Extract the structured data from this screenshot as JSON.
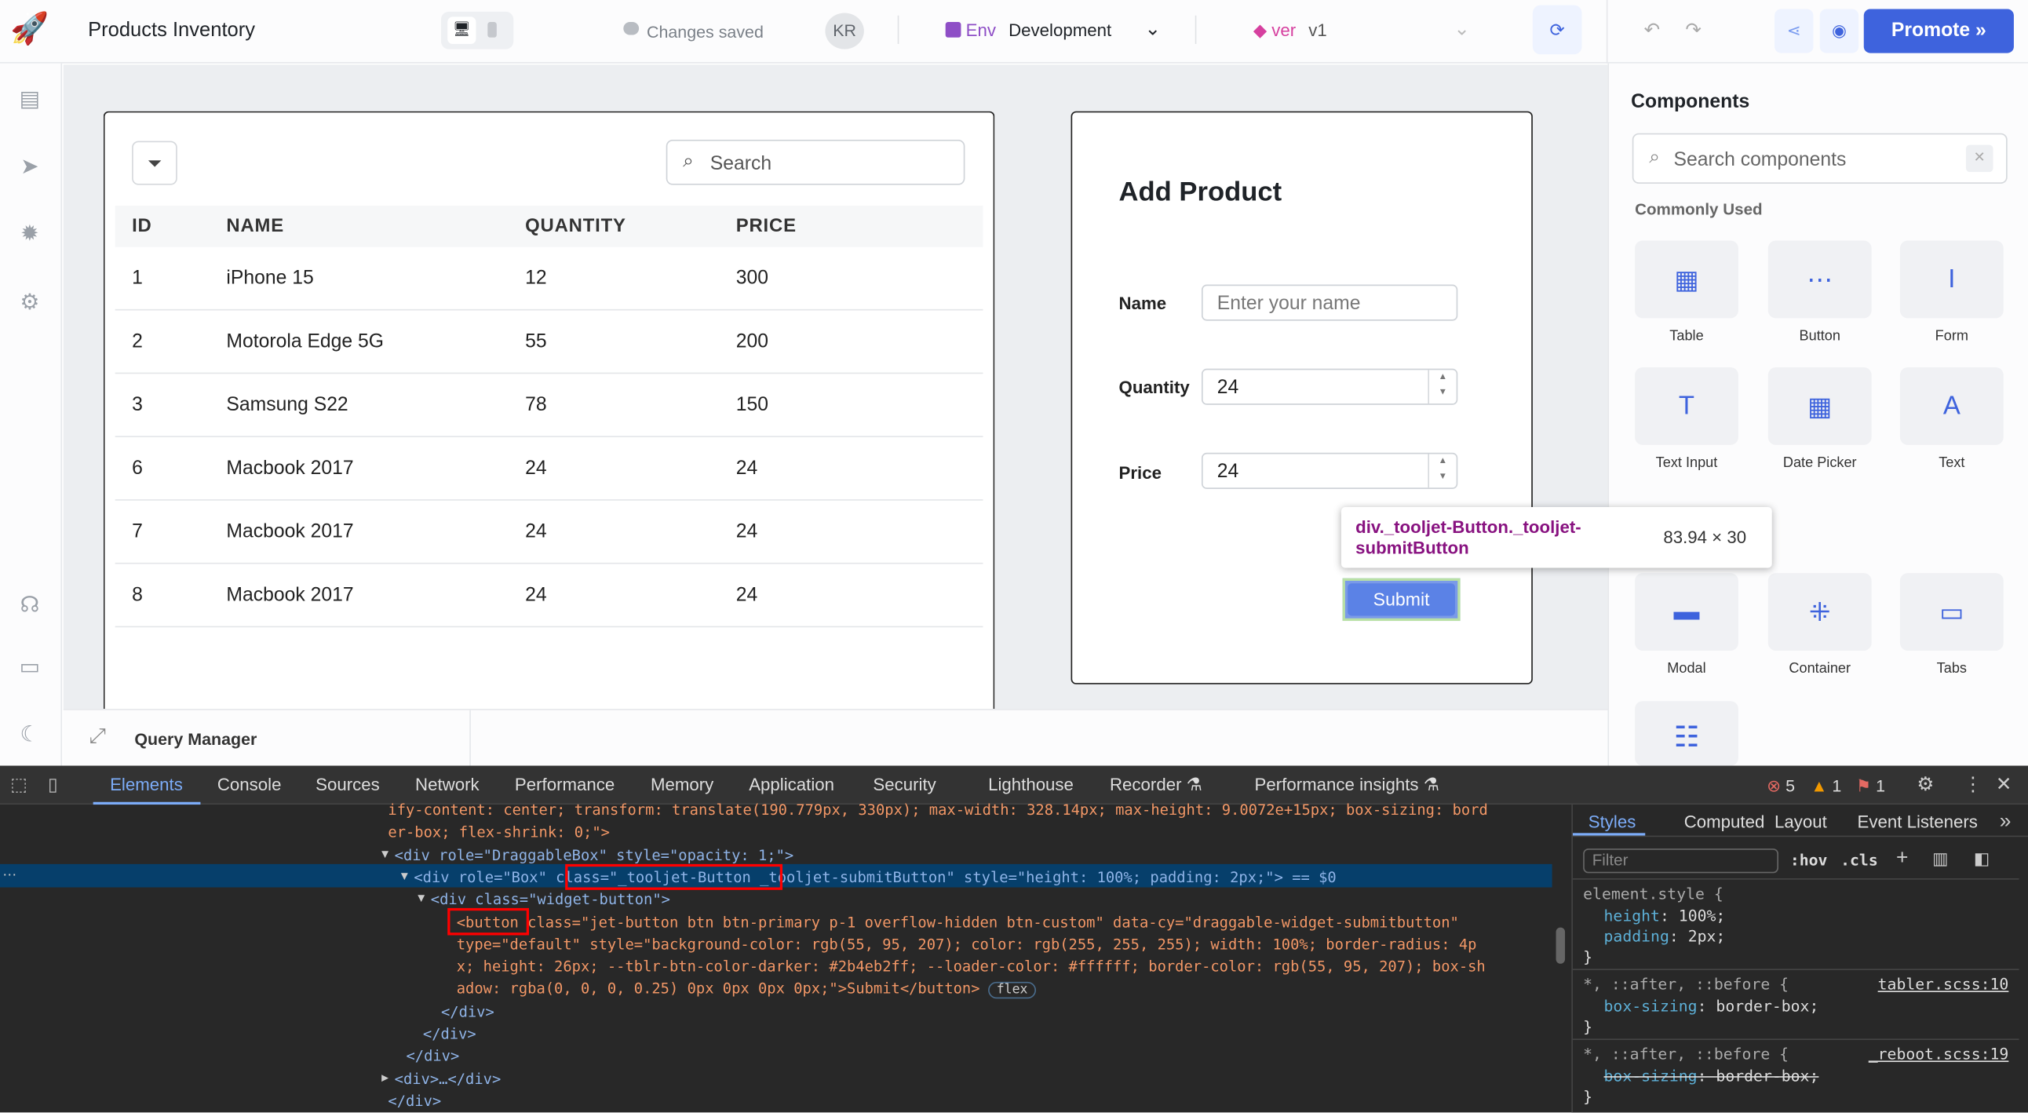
{
  "header": {
    "app_title": "Products Inventory",
    "save_status": "Changes saved",
    "avatar_initials": "KR",
    "env_label": "Env",
    "env_value": "Development",
    "version_label": "ver",
    "version_value": "v1",
    "promote_label": "Promote",
    "accent": "#3e63dd"
  },
  "table": {
    "search_placeholder": "Search",
    "columns": [
      "ID",
      "NAME",
      "QUANTITY",
      "PRICE"
    ],
    "rows": [
      [
        "1",
        "iPhone 15",
        "12",
        "300"
      ],
      [
        "2",
        "Motorola Edge 5G",
        "55",
        "200"
      ],
      [
        "3",
        "Samsung S22",
        "78",
        "150"
      ],
      [
        "6",
        "Macbook 2017",
        "24",
        "24"
      ],
      [
        "7",
        "Macbook 2017",
        "24",
        "24"
      ],
      [
        "8",
        "Macbook 2017",
        "24",
        "24"
      ]
    ]
  },
  "form": {
    "title": "Add Product",
    "name_label": "Name",
    "name_placeholder": "Enter your name",
    "quantity_label": "Quantity",
    "quantity_value": "24",
    "price_label": "Price",
    "price_value": "24",
    "submit_label": "Submit"
  },
  "tooltip": {
    "selector": "div._tooljet-Button._tooljet-submitButton",
    "size": "83.94 × 30"
  },
  "query_manager": {
    "label": "Query Manager"
  },
  "components": {
    "title": "Components",
    "search_placeholder": "Search components",
    "section": "Commonly Used",
    "items": [
      "Table",
      "Button",
      "Form",
      "Text Input",
      "Date Picker",
      "Text",
      "Modal",
      "Container",
      "Tabs"
    ]
  },
  "devtools": {
    "tabs": [
      "Elements",
      "Console",
      "Sources",
      "Network",
      "Performance",
      "Memory",
      "Application",
      "Security",
      "Lighthouse",
      "Recorder",
      "Performance insights"
    ],
    "errors": "5",
    "warnings": "1",
    "issues": "1",
    "code_lines": [
      "ify-content: center; transform: translate(190.779px, 330px); max-width: 328.14px; max-height: 9.0072e+15px; box-sizing: bord",
      "er-box; flex-shrink: 0;\">",
      "<div role=\"DraggableBox\" style=\"opacity: 1;\">",
      "<div role=\"Box\" class=\"_tooljet-Button _tooljet-submitButton\" style=\"height: 100%; padding: 2px;\"> == $0",
      "<div class=\"widget-button\">",
      "<button class=\"jet-button btn btn-primary p-1 overflow-hidden btn-custom\" data-cy=\"draggable-widget-submitbutton\"",
      "type=\"default\" style=\"background-color: rgb(55, 95, 207); color: rgb(255, 255, 255); width: 100%; border-radius: 4p",
      "x; height: 26px; --tblr-btn-color-darker: #2b4eb2ff; --loader-color: #ffffff; border-color: rgb(55, 95, 207); box-sh",
      "adow: rgba(0, 0, 0, 0.25) 0px 0px 0px 0px;\">Submit</button>",
      "</div>",
      "</div>",
      "</div>",
      "<div>…</div>",
      "</div>"
    ],
    "flex_badge": "flex",
    "side_tabs": [
      "Styles",
      "Computed",
      "Layout",
      "Event Listeners"
    ],
    "filter_placeholder": "Filter",
    "hov": ":hov",
    "cls": ".cls",
    "rules": [
      {
        "selector": "element.style {",
        "decls": [
          [
            "height",
            "100%;"
          ],
          [
            "padding",
            "2px;"
          ]
        ],
        "source": ""
      },
      {
        "selector": "*, ::after, ::before {",
        "decls": [
          [
            "box-sizing",
            "border-box;"
          ]
        ],
        "source": "tabler.scss:10"
      },
      {
        "selector": "*, ::after, ::before {",
        "decls": [
          [
            "box-sizing",
            "border-box;"
          ]
        ],
        "source": "_reboot.scss:19"
      }
    ]
  }
}
